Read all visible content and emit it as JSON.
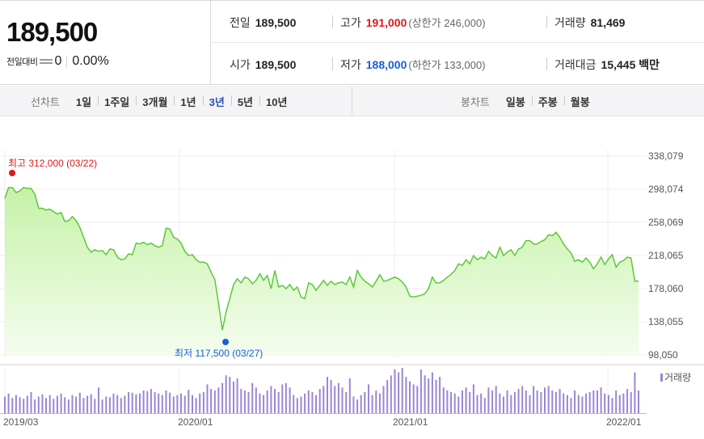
{
  "quote": {
    "price": "189,500",
    "change_label": "전일대비",
    "change_value": "0",
    "change_pct": "0.00%"
  },
  "stats": {
    "prev_close_label": "전일",
    "prev_close": "189,500",
    "high_label": "고가",
    "high": "191,000",
    "upper_limit": "(상한가 246,000)",
    "volume_label": "거래량",
    "volume": "81,469",
    "open_label": "시가",
    "open": "189,500",
    "low_label": "저가",
    "low": "188,000",
    "lower_limit": "(하한가 133,000)",
    "amount_label": "거래대금",
    "amount": "15,445 백만"
  },
  "line_tabs": {
    "title": "선차트",
    "items": [
      "1일",
      "1주일",
      "3개월",
      "1년",
      "3년",
      "5년",
      "10년"
    ],
    "active": "3년"
  },
  "candle_tabs": {
    "title": "봉차트",
    "items": [
      "일봉",
      "주봉",
      "월봉"
    ]
  },
  "colors": {
    "line": "#5cc83a",
    "fill_top": "#c6f2a8",
    "fill_bottom": "#f4fdee",
    "up": "#e0181b",
    "down": "#1a5fd6",
    "volume": "#9b86d4"
  },
  "chart_data": {
    "type": "area",
    "y_ticks": [
      "338,079",
      "298,074",
      "258,069",
      "218,065",
      "178,060",
      "138,055",
      "98,050"
    ],
    "ylim": [
      98050,
      338079
    ],
    "x_ticks": [
      "2019/03",
      "2020/01",
      "2021/01",
      "2022/01"
    ],
    "high_label": "최고 312,000 (03/22)",
    "low_label": "최저 117,500 (03/27)",
    "volume_label": "거래량",
    "series": [
      {
        "values": [
          287000,
          300000,
          300000,
          294000,
          296000,
          300000,
          299000,
          299000,
          292000,
          275000,
          275000,
          273000,
          274000,
          271000,
          268000,
          270000,
          259000,
          260000,
          265000,
          260000,
          252000,
          240000,
          228000,
          222000,
          225000,
          223000,
          224000,
          219000,
          226000,
          225000,
          216000,
          213000,
          214000,
          220000,
          219000,
          233000,
          232000,
          234000,
          231000,
          233000,
          230000,
          228000,
          230000,
          251000,
          250000,
          240000,
          238000,
          233000,
          223000,
          218000,
          219000,
          213000,
          210000,
          210000,
          208000,
          198000,
          189000,
          160000,
          128000,
          150000,
          166000,
          183000,
          190000,
          185000,
          192000,
          190000,
          184000,
          188000,
          196000,
          188000,
          194000,
          178000,
          200000,
          180000,
          182000,
          178000,
          183000,
          176000,
          180000,
          168000,
          166000,
          185000,
          183000,
          176000,
          182000,
          188000,
          182000,
          187000,
          183000,
          185000,
          186000,
          183000,
          192000,
          180000,
          200000,
          192000,
          187000,
          184000,
          180000,
          187000,
          195000,
          187000,
          188000,
          190000,
          192000,
          190000,
          186000,
          180000,
          169000,
          168000,
          169000,
          170000,
          172000,
          178000,
          192000,
          185000,
          185000,
          188000,
          192000,
          195000,
          200000,
          208000,
          206000,
          213000,
          208000,
          218000,
          213000,
          216000,
          214000,
          223000,
          218000,
          215000,
          228000,
          218000,
          222000,
          225000,
          218000,
          226000,
          228000,
          236000,
          236000,
          232000,
          232000,
          235000,
          237000,
          243000,
          242000,
          246000,
          240000,
          232000,
          226000,
          221000,
          211000,
          213000,
          210000,
          215000,
          210000,
          202000,
          208000,
          216000,
          207000,
          214000,
          219000,
          204000,
          210000,
          212000,
          216000,
          215000,
          187000,
          187000
        ]
      },
      {
        "name": "거래량",
        "values": [
          22,
          26,
          20,
          24,
          21,
          19,
          23,
          28,
          18,
          22,
          25,
          20,
          24,
          19,
          23,
          26,
          21,
          18,
          24,
          22,
          27,
          20,
          23,
          25,
          19,
          34,
          18,
          22,
          21,
          26,
          24,
          20,
          23,
          28,
          27,
          25,
          26,
          30,
          29,
          32,
          28,
          26,
          24,
          30,
          27,
          22,
          24,
          26,
          23,
          31,
          24,
          20,
          26,
          28,
          38,
          32,
          30,
          34,
          40,
          50,
          48,
          42,
          46,
          32,
          30,
          28,
          40,
          34,
          26,
          24,
          30,
          36,
          32,
          28,
          38,
          40,
          34,
          24,
          20,
          22,
          26,
          30,
          28,
          24,
          32,
          36,
          48,
          44,
          36,
          40,
          34,
          28,
          46,
          22,
          18,
          24,
          28,
          38,
          24,
          30,
          26,
          36,
          44,
          50,
          58,
          54,
          60,
          48,
          42,
          38,
          36,
          58,
          50,
          46,
          54,
          44,
          48,
          34,
          30,
          28,
          26,
          22,
          30,
          34,
          28,
          38,
          24,
          26,
          20,
          34,
          30,
          36,
          26,
          22,
          30,
          24,
          28,
          32,
          36,
          30,
          24,
          36,
          30,
          28,
          34,
          36,
          30,
          28,
          32,
          26,
          24,
          20,
          30,
          24,
          22,
          26,
          28,
          30,
          30,
          34,
          26,
          24,
          20,
          30,
          24,
          26,
          32,
          28,
          54,
          30
        ]
      }
    ]
  }
}
